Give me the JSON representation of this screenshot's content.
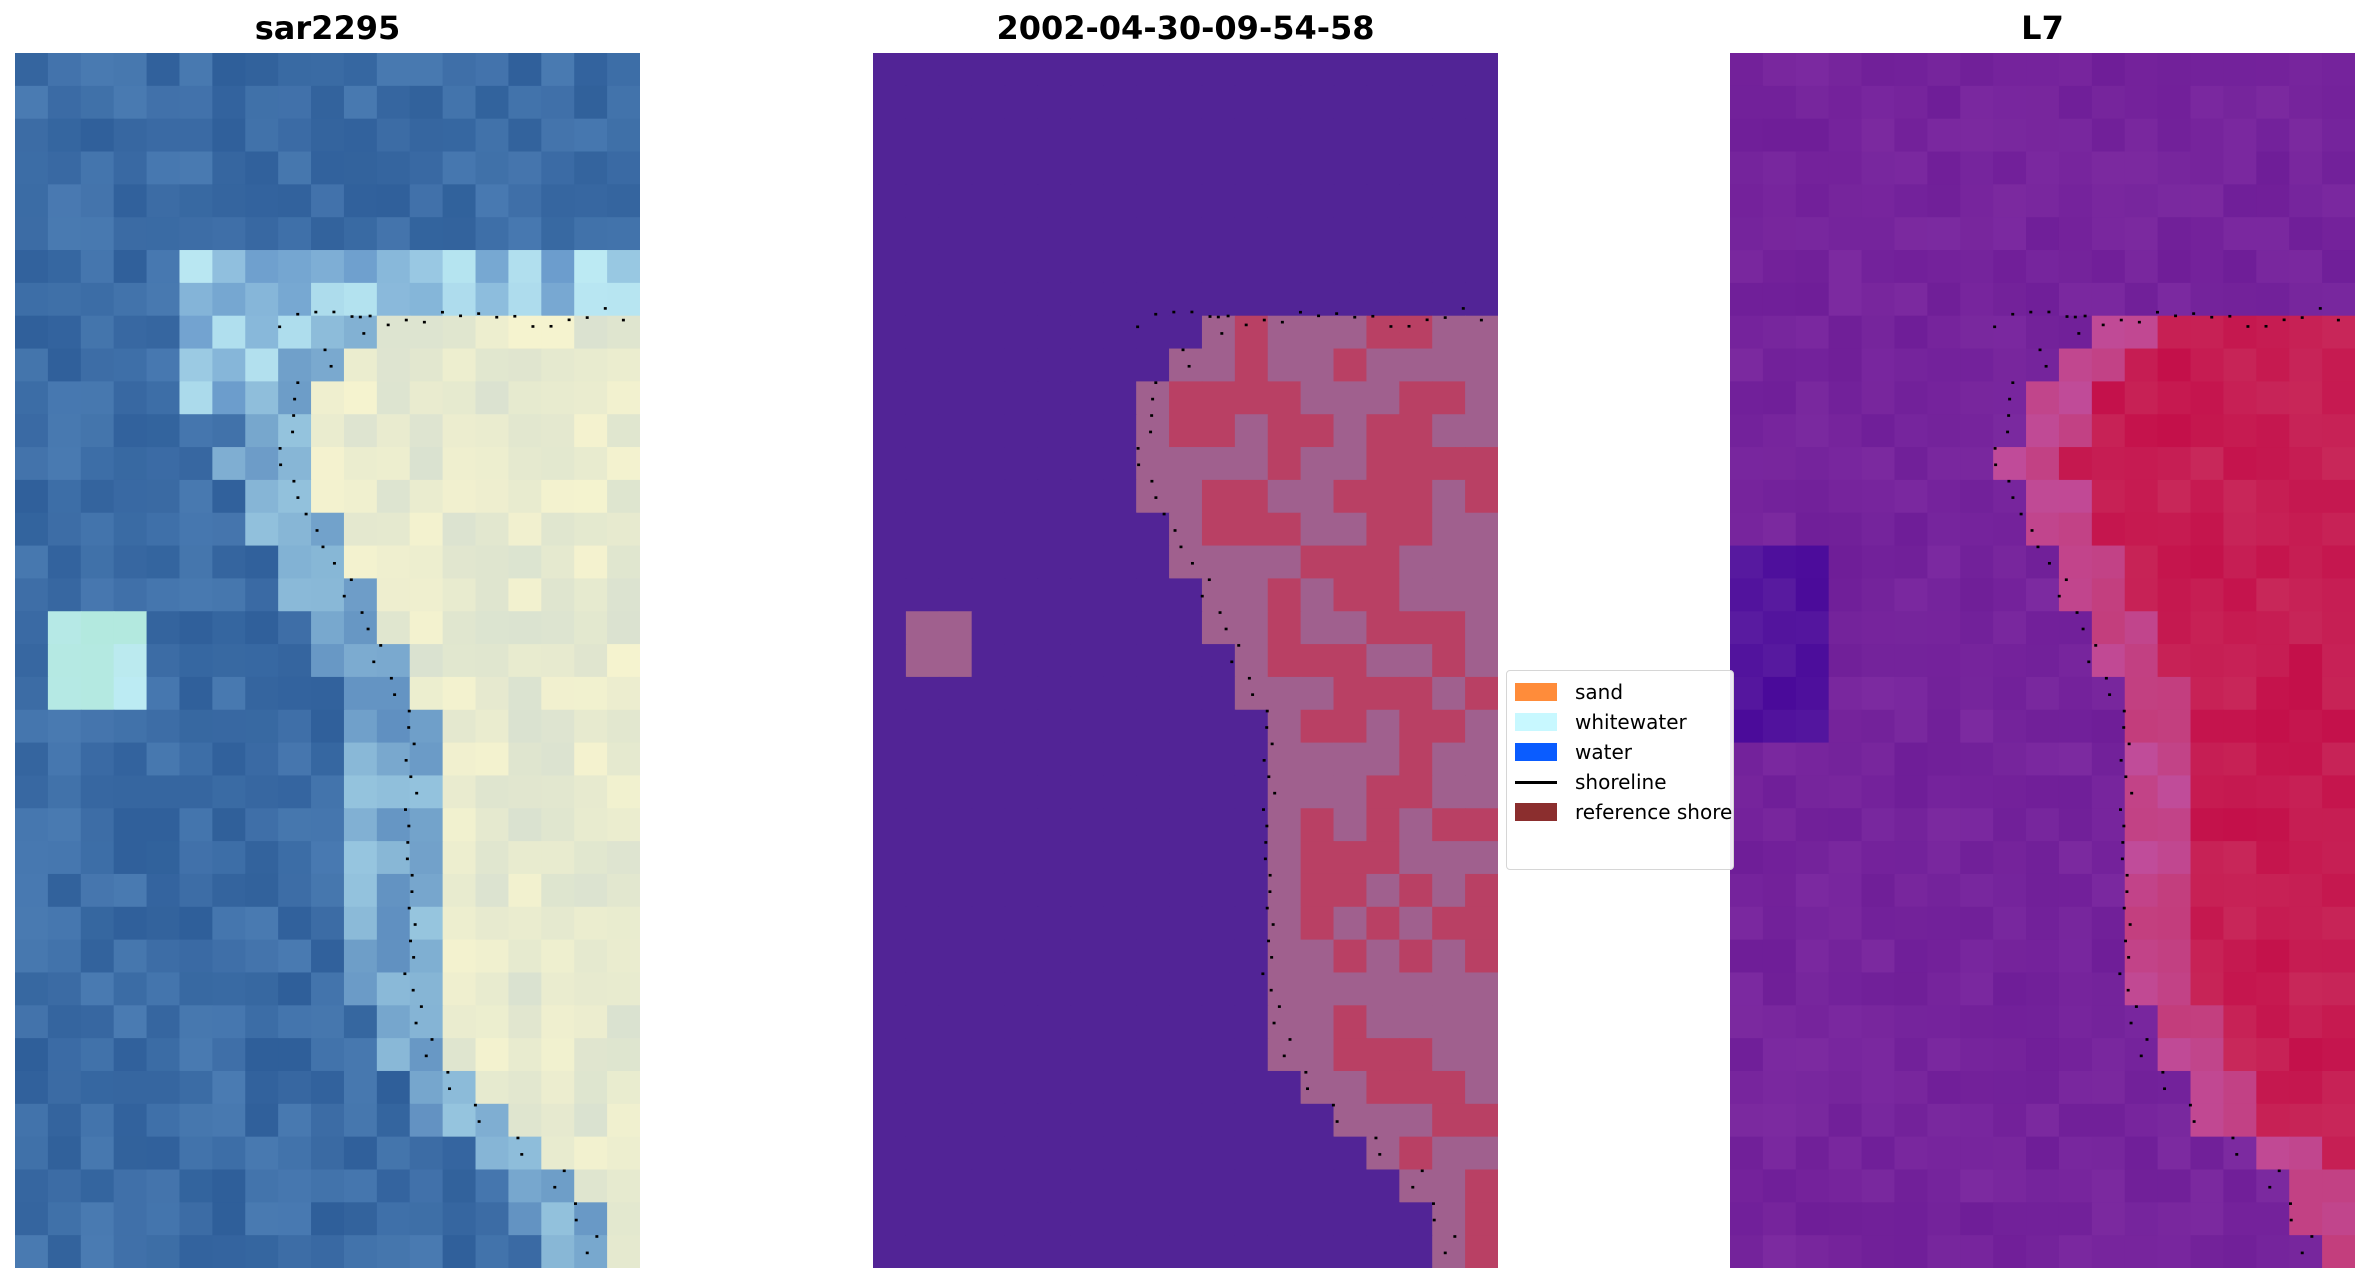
{
  "panels": {
    "left": {
      "title": "sar2295"
    },
    "middle": {
      "title": "2002-04-30-09-54-58"
    },
    "right": {
      "title": "L7"
    }
  },
  "legend": {
    "items": [
      {
        "label": "sand",
        "color": "#ff8c3a",
        "kind": "patch"
      },
      {
        "label": "whitewater",
        "color": "#c8f8ff",
        "kind": "patch"
      },
      {
        "label": "water",
        "color": "#0a5cff",
        "kind": "patch"
      },
      {
        "label": "shoreline",
        "color": "#000000",
        "kind": "line"
      },
      {
        "label": "reference shoreline",
        "color": "#8b2e2e",
        "kind": "patch"
      }
    ]
  },
  "colors": {
    "rgb_water_dark": "#2f5f9a",
    "rgb_whitewater": "#bdebf4",
    "rgb_sand_light": "#f5f3cf",
    "class_background": "#522496",
    "class_sand_overlay": "#b94064",
    "class_pink_overlay": "#a0608e",
    "ndwi_purple": "#6f1e98",
    "ndwi_pink": "#c04c9a",
    "ndwi_red": "#c4104a"
  }
}
